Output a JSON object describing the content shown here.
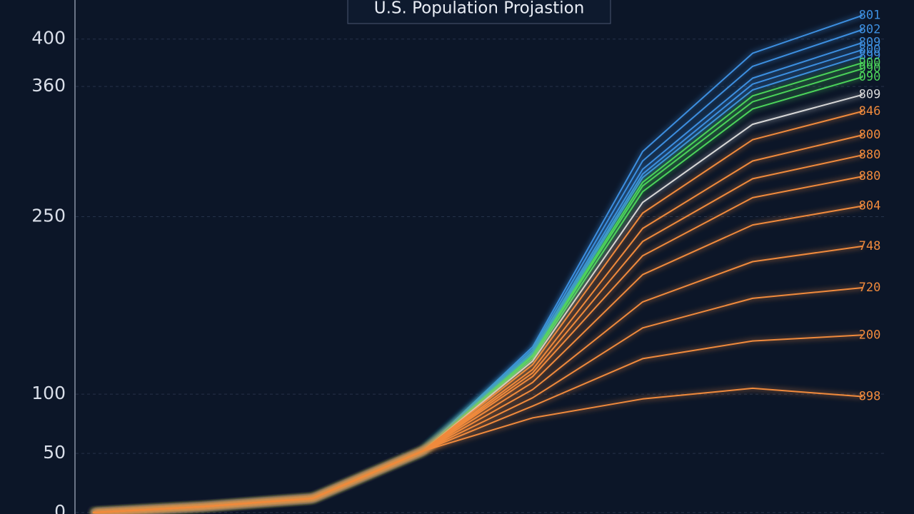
{
  "chart_data": {
    "type": "line",
    "title": "U.S. Population Projastion",
    "categories": [
      null,
      null,
      null,
      null,
      null,
      null,
      null,
      null
    ],
    "ylim": [
      0,
      430
    ],
    "yticks": [
      0,
      50,
      100,
      250,
      360,
      400
    ],
    "grid": true,
    "series": [
      {
        "name": "801",
        "color": "#3d8fe0",
        "values": [
          0,
          5,
          12,
          52,
          140,
          305,
          388,
          420
        ]
      },
      {
        "name": "802",
        "color": "#3d8fe0",
        "values": [
          0,
          5,
          12,
          52,
          138,
          297,
          377,
          408
        ]
      },
      {
        "name": "809",
        "color": "#3d8fe0",
        "values": [
          0,
          5,
          12,
          52,
          136,
          290,
          367,
          397
        ]
      },
      {
        "name": "800",
        "color": "#3d8fe0",
        "values": [
          0,
          5,
          12,
          52,
          135,
          286,
          362,
          391
        ]
      },
      {
        "name": "899",
        "color": "#3d8fe0",
        "values": [
          0,
          5,
          12,
          52,
          134,
          283,
          357,
          386
        ]
      },
      {
        "name": "900",
        "color": "#4cd35a",
        "values": [
          0,
          5,
          12,
          52,
          133,
          279,
          352,
          380
        ]
      },
      {
        "name": "990",
        "color": "#4cd35a",
        "values": [
          0,
          5,
          12,
          52,
          132,
          276,
          347,
          375
        ]
      },
      {
        "name": "090",
        "color": "#4cd35a",
        "values": [
          0,
          5,
          12,
          52,
          130,
          271,
          341,
          368
        ]
      },
      {
        "name": "809",
        "color": "#d8d8d8",
        "values": [
          0,
          5,
          12,
          52,
          128,
          262,
          328,
          353
        ]
      },
      {
        "name": "846",
        "color": "#f08a3c",
        "values": [
          0,
          5,
          12,
          52,
          125,
          253,
          315,
          339
        ]
      },
      {
        "name": "800",
        "color": "#f08a3c",
        "values": [
          0,
          5,
          12,
          52,
          121,
          240,
          297,
          319
        ]
      },
      {
        "name": "880",
        "color": "#f08a3c",
        "values": [
          0,
          5,
          12,
          52,
          118,
          229,
          282,
          302
        ]
      },
      {
        "name": "880",
        "color": "#f08a3c",
        "values": [
          0,
          5,
          12,
          52,
          115,
          217,
          266,
          284
        ]
      },
      {
        "name": "804",
        "color": "#f08a3c",
        "values": [
          0,
          5,
          12,
          52,
          110,
          201,
          243,
          259
        ]
      },
      {
        "name": "748",
        "color": "#f08a3c",
        "values": [
          0,
          5,
          12,
          52,
          104,
          178,
          212,
          225
        ]
      },
      {
        "name": "720",
        "color": "#f08a3c",
        "values": [
          0,
          5,
          12,
          52,
          97,
          156,
          181,
          190
        ]
      },
      {
        "name": "200",
        "color": "#f08a3c",
        "values": [
          0,
          5,
          12,
          52,
          90,
          130,
          145,
          150
        ]
      },
      {
        "name": "898",
        "color": "#f08a3c",
        "values": [
          0,
          5,
          12,
          52,
          80,
          96,
          105,
          98
        ]
      }
    ]
  }
}
